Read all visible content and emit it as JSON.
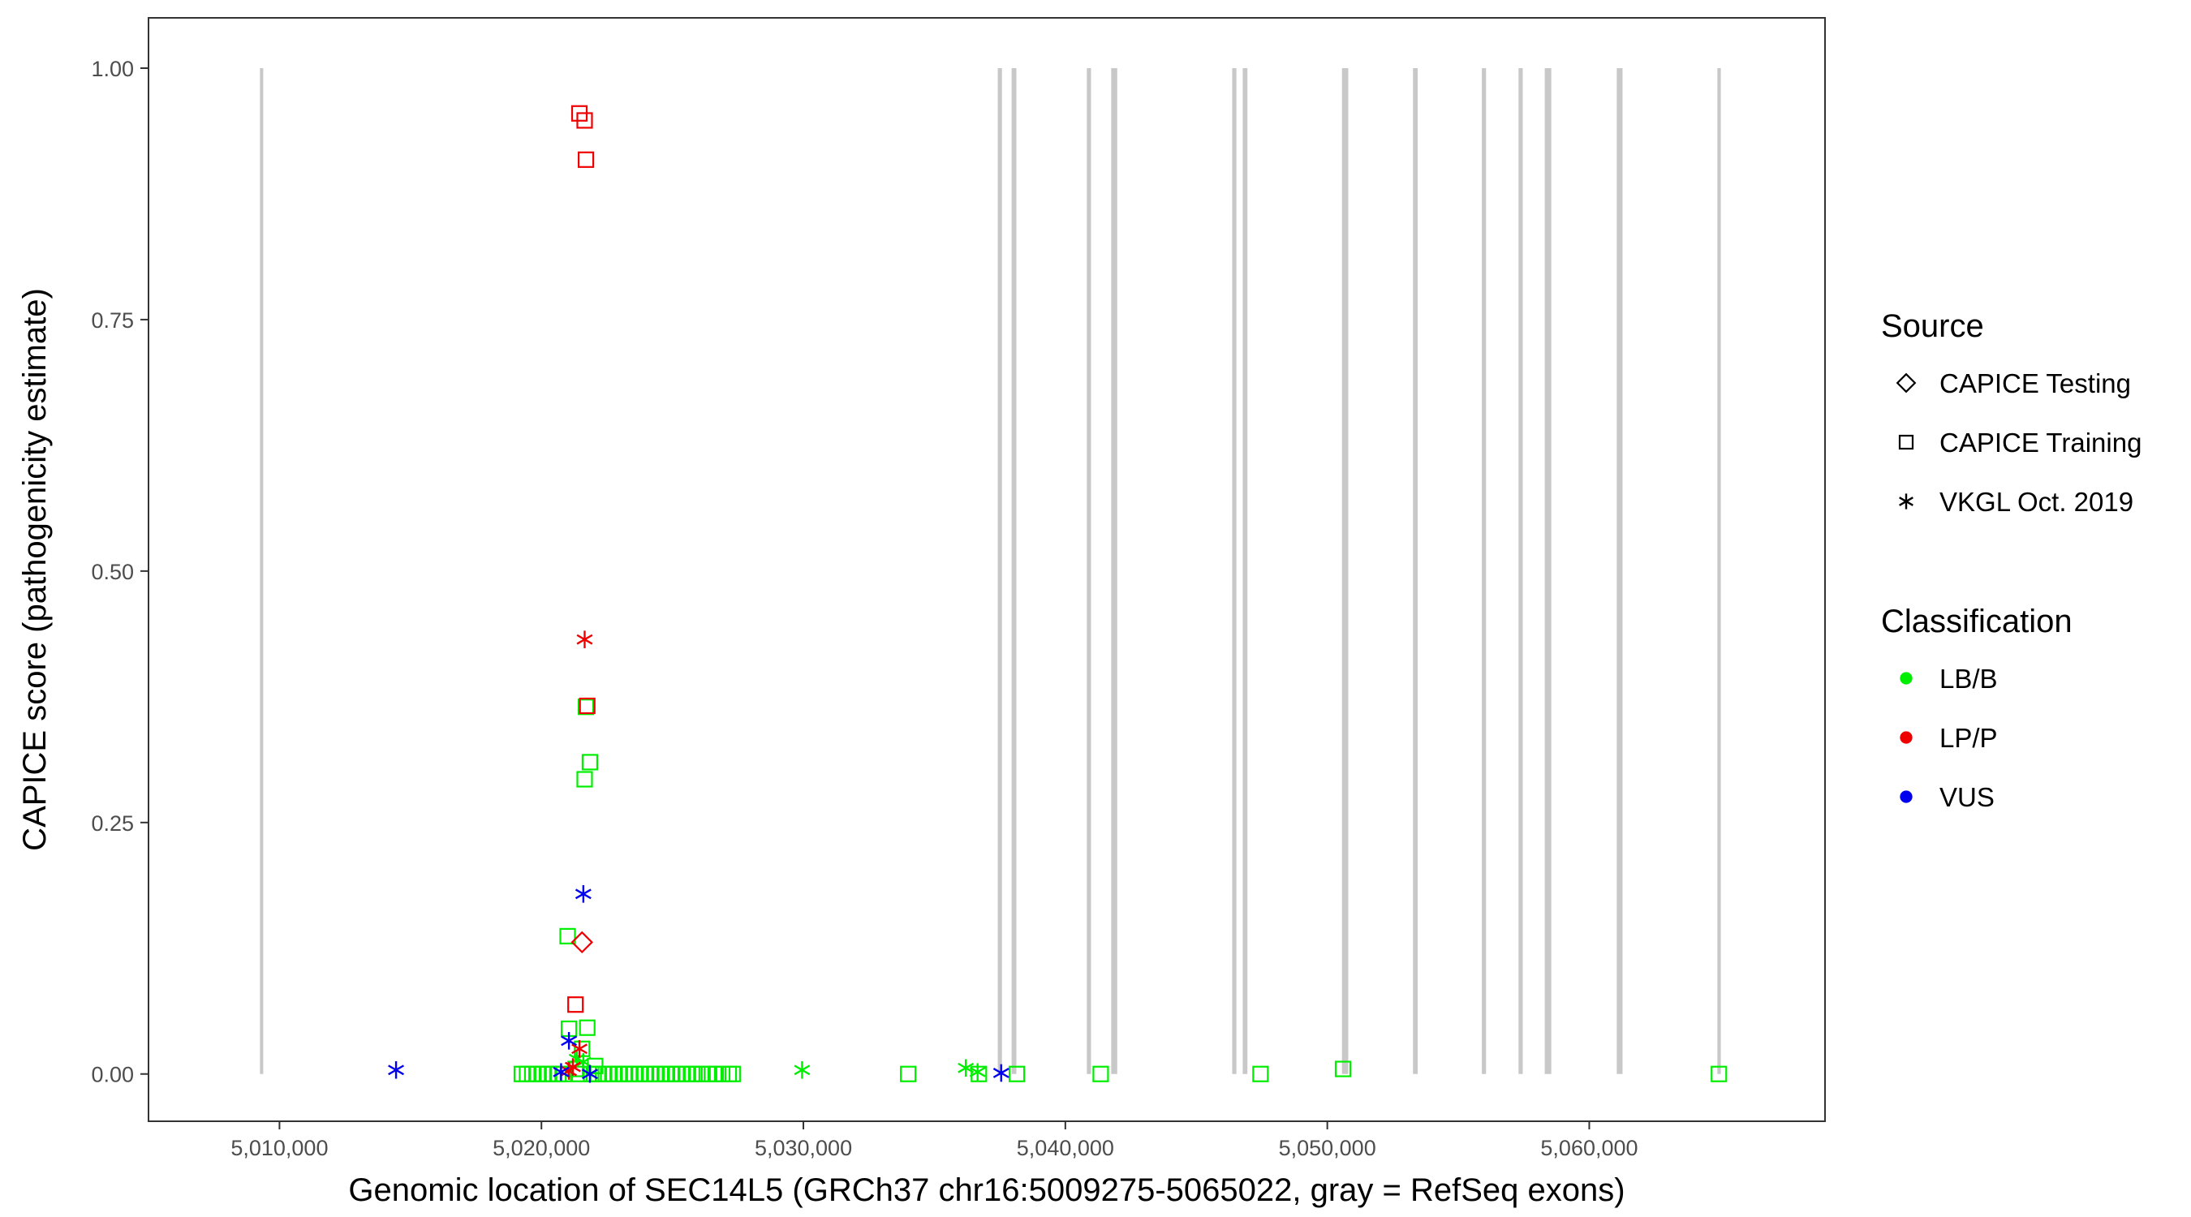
{
  "chart_data": {
    "type": "scatter",
    "xlabel": "Genomic location of SEC14L5 (GRCh37 chr16:5009275-5065022, gray = RefSeq exons)",
    "ylabel": "CAPICE score (pathogenicity estimate)",
    "xlim": [
      5005000,
      5069000
    ],
    "ylim": [
      -0.047,
      1.05
    ],
    "x_ticks": [
      5010000,
      5020000,
      5030000,
      5040000,
      5050000,
      5060000
    ],
    "x_tick_labels": [
      "5,010,000",
      "5,020,000",
      "5,030,000",
      "5,040,000",
      "5,050,000",
      "5,060,000"
    ],
    "y_ticks": [
      0,
      0.25,
      0.5,
      0.75,
      1.0
    ],
    "y_tick_labels": [
      "0.00",
      "0.25",
      "0.50",
      "0.75",
      "1.00"
    ],
    "grid": false,
    "exon_color": "#c8c8c8",
    "exons": [
      [
        5009275,
        5009360
      ],
      [
        5037420,
        5037580
      ],
      [
        5037950,
        5038130
      ],
      [
        5040820,
        5040980
      ],
      [
        5041750,
        5041980
      ],
      [
        5046370,
        5046530
      ],
      [
        5046770,
        5046950
      ],
      [
        5050560,
        5050800
      ],
      [
        5053270,
        5053450
      ],
      [
        5055900,
        5056060
      ],
      [
        5057300,
        5057460
      ],
      [
        5058300,
        5058550
      ],
      [
        5061050,
        5061270
      ],
      [
        5064890,
        5065022
      ]
    ],
    "legend": {
      "position": "right",
      "source": {
        "title": "Source",
        "items": [
          {
            "label": "CAPICE Testing",
            "shape": "diamond"
          },
          {
            "label": "CAPICE Training",
            "shape": "square"
          },
          {
            "label": "VKGL Oct. 2019",
            "shape": "asterisk"
          }
        ]
      },
      "classification": {
        "title": "Classification",
        "items": [
          {
            "label": "LB/B",
            "color": "#00ee00"
          },
          {
            "label": "LP/P",
            "color": "#ee0000"
          },
          {
            "label": "VUS",
            "color": "#0000ee"
          }
        ]
      }
    },
    "series": [
      {
        "source": "CAPICE Training",
        "classification": "LB/B",
        "shape": "square",
        "color": "#00ee00",
        "points": [
          [
            5019250,
            0.0
          ],
          [
            5019450,
            0.0
          ],
          [
            5019650,
            0.0
          ],
          [
            5019850,
            0.0
          ],
          [
            5020050,
            0.0
          ],
          [
            5020250,
            0.0
          ],
          [
            5020450,
            0.0
          ],
          [
            5020650,
            0.0
          ],
          [
            5020850,
            0.0
          ],
          [
            5021000,
            0.137
          ],
          [
            5021050,
            0.045
          ],
          [
            5021300,
            0.005
          ],
          [
            5021450,
            0.0
          ],
          [
            5021550,
            0.025
          ],
          [
            5021650,
            0.293
          ],
          [
            5021700,
            0.365
          ],
          [
            5021750,
            0.046
          ],
          [
            5021850,
            0.31
          ],
          [
            5021900,
            0.0
          ],
          [
            5022050,
            0.008
          ],
          [
            5022150,
            0.0
          ],
          [
            5022350,
            0.0
          ],
          [
            5022550,
            0.0
          ],
          [
            5022750,
            0.0
          ],
          [
            5022950,
            0.0
          ],
          [
            5023150,
            0.0
          ],
          [
            5023350,
            0.0
          ],
          [
            5023550,
            0.0
          ],
          [
            5023750,
            0.0
          ],
          [
            5023950,
            0.0
          ],
          [
            5024150,
            0.0
          ],
          [
            5024350,
            0.0
          ],
          [
            5024550,
            0.0
          ],
          [
            5024750,
            0.0
          ],
          [
            5024950,
            0.0
          ],
          [
            5025150,
            0.0
          ],
          [
            5025350,
            0.0
          ],
          [
            5025550,
            0.0
          ],
          [
            5025750,
            0.0
          ],
          [
            5025950,
            0.0
          ],
          [
            5026150,
            0.0
          ],
          [
            5026400,
            0.0
          ],
          [
            5026650,
            0.0
          ],
          [
            5026900,
            0.0
          ],
          [
            5027150,
            0.0
          ],
          [
            5027300,
            0.0
          ],
          [
            5034000,
            0.0
          ],
          [
            5036700,
            0.0
          ],
          [
            5038150,
            0.0
          ],
          [
            5041350,
            0.0
          ],
          [
            5047450,
            0.0
          ],
          [
            5050600,
            0.005
          ],
          [
            5064950,
            0.0
          ]
        ]
      },
      {
        "source": "CAPICE Training",
        "classification": "LP/P",
        "shape": "square",
        "color": "#ee0000",
        "points": [
          [
            5021450,
            0.955
          ],
          [
            5021650,
            0.948
          ],
          [
            5021700,
            0.909
          ],
          [
            5021750,
            0.366
          ],
          [
            5021300,
            0.069
          ]
        ]
      },
      {
        "source": "CAPICE Testing",
        "classification": "LP/P",
        "shape": "diamond",
        "color": "#ee0000",
        "points": [
          [
            5021550,
            0.131
          ]
        ]
      },
      {
        "source": "VKGL Oct. 2019",
        "classification": "LB/B",
        "shape": "asterisk",
        "color": "#00ee00",
        "points": [
          [
            5021350,
            0.015
          ],
          [
            5021600,
            0.012
          ],
          [
            5029950,
            0.004
          ],
          [
            5036200,
            0.006
          ],
          [
            5036650,
            0.002
          ]
        ]
      },
      {
        "source": "VKGL Oct. 2019",
        "classification": "LP/P",
        "shape": "asterisk",
        "color": "#ee0000",
        "points": [
          [
            5021650,
            0.432
          ],
          [
            5021450,
            0.025
          ],
          [
            5021200,
            0.007
          ],
          [
            5021050,
            0.003
          ]
        ]
      },
      {
        "source": "VKGL Oct. 2019",
        "classification": "VUS",
        "shape": "asterisk",
        "color": "#0000ee",
        "points": [
          [
            5014450,
            0.004
          ],
          [
            5020750,
            0.002
          ],
          [
            5021050,
            0.033
          ],
          [
            5021600,
            0.179
          ],
          [
            5021850,
            0.0
          ],
          [
            5037550,
            0.001
          ]
        ]
      }
    ]
  }
}
